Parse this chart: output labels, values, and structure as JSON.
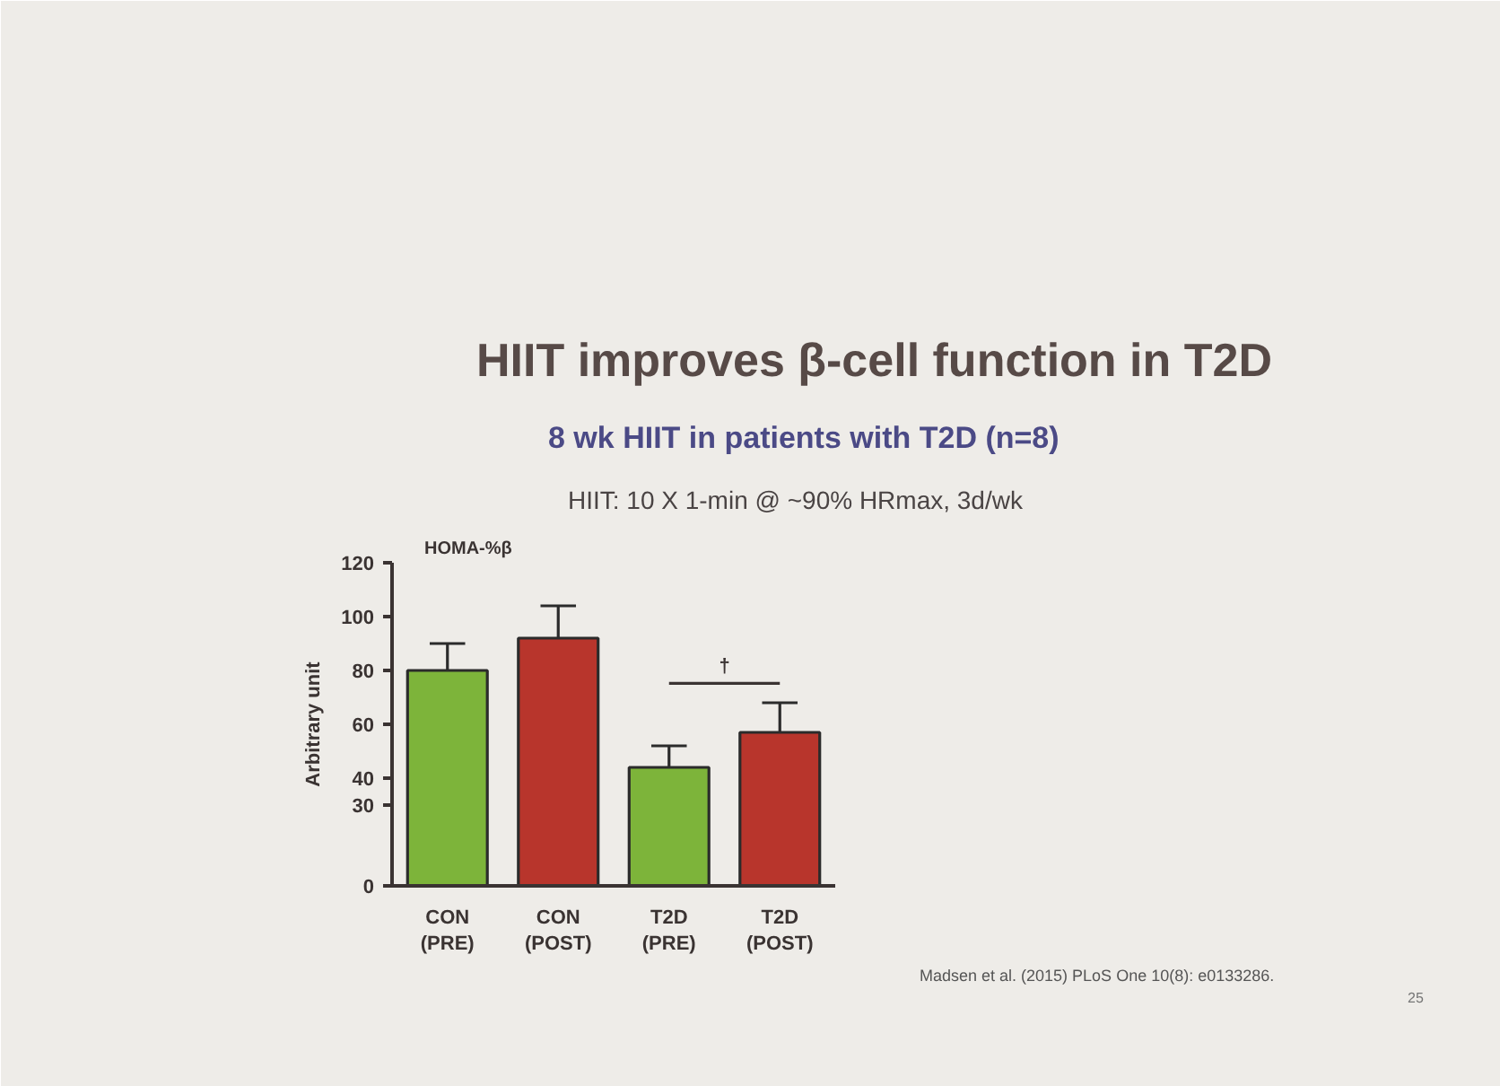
{
  "chart_data": {
    "type": "bar",
    "title": "HIIT improves β-cell function in T2D",
    "subtitle": "8 wk HIIT in patients with T2D (n=8)",
    "ylabel": "Arbitrary unit",
    "categories": [
      "CON\n(PRE)",
      "CON\n(POST)",
      "T2D\n(PRE)",
      "T2D\n(POST)"
    ],
    "values": [
      80,
      92,
      44,
      57
    ],
    "colors": [
      "#7db43a",
      "#b8352c",
      "#7db43a",
      "#b8352c"
    ],
    "errors": [
      [
        80,
        90
      ],
      [
        92,
        104
      ],
      [
        44,
        52
      ],
      [
        57,
        68
      ]
    ],
    "ylim": [
      0,
      120
    ],
    "yticks": [
      0,
      30,
      40,
      60,
      80,
      100,
      120
    ],
    "annotations": [
      "HIIT: 10 X 1-min @ ~90% HRmax, 3d/wk",
      "HOMA-%β",
      "†",
      "Madsen et al. (2015) PLoS One 10(8): e0133286.",
      "25"
    ]
  }
}
